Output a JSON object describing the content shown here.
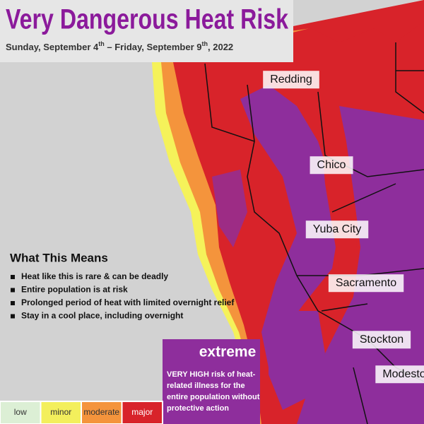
{
  "header": {
    "title": "Very Dangerous Heat Risk",
    "subtitle": [
      "Sunday, September 4",
      "th",
      " – Friday, September 9",
      "th",
      ", 2022"
    ]
  },
  "cities": [
    "Redding",
    "Chico",
    "Yuba City",
    "Sacramento",
    "Stockton",
    "Modesto"
  ],
  "info": {
    "heading": "What This Means",
    "bullets": [
      "Heat like this is rare & can be deadly",
      "Entire population is at risk",
      "Prolonged period of heat with limited overnight relief",
      "Stay in a cool place, including overnight"
    ]
  },
  "level": {
    "name": "extreme",
    "description": [
      "VERY HIGH risk of heat-",
      "related illness for the",
      "entire population without",
      "protective action"
    ]
  },
  "legend": [
    {
      "label": "low",
      "color": "#dcefd5"
    },
    {
      "label": "minor",
      "color": "#f3ef5c"
    },
    {
      "label": "moderate",
      "color": "#f4943c"
    },
    {
      "label": "major",
      "color": "#d8232a"
    }
  ]
}
